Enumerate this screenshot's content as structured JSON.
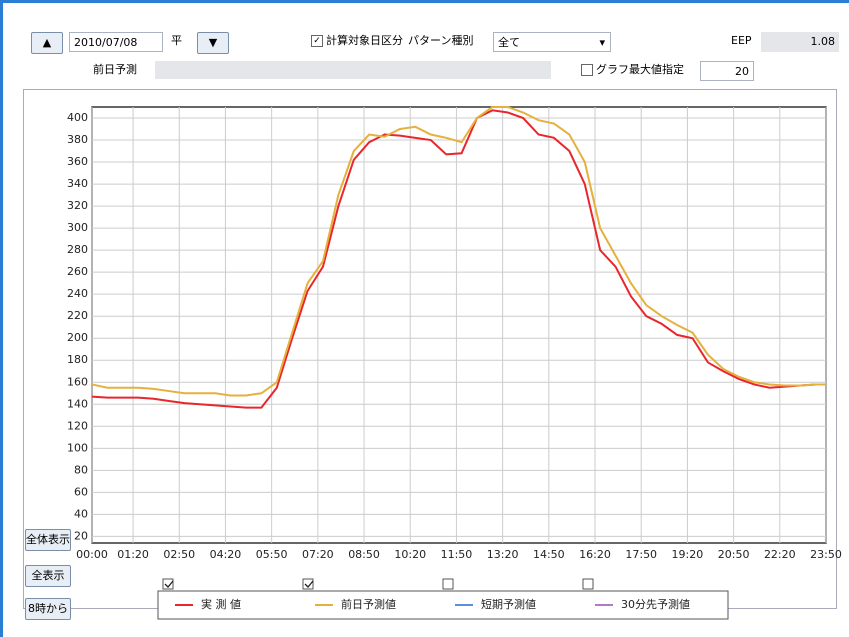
{
  "toolbar": {
    "date": "2010/07/08",
    "day_type": "平",
    "calc_target_label": "計算対象日区分",
    "pattern_label": "パターン種別",
    "pattern_value": "全て",
    "eep_label": "EEP",
    "eep_value": 1.08,
    "prev_label": "前日予測",
    "graph_max_label": "グラフ最大値指定",
    "graph_max_value": 20
  },
  "buttons": [
    "全体表示",
    "全表示",
    "8時から"
  ],
  "chart_data": {
    "type": "line",
    "x": [
      0,
      30,
      60,
      90,
      120,
      150,
      180,
      210,
      240,
      270,
      300,
      330,
      360,
      390,
      420,
      450,
      480,
      510,
      540,
      570,
      600,
      630,
      660,
      690,
      720,
      750,
      780,
      810,
      840,
      870,
      900,
      930,
      960,
      990,
      1020,
      1050,
      1080,
      1110,
      1140,
      1170,
      1200,
      1230,
      1260,
      1290,
      1320,
      1350,
      1380,
      1410,
      1430
    ],
    "series": [
      {
        "name": "実 測 値",
        "color": "#e8262b",
        "visible": true,
        "values": [
          147,
          146,
          146,
          146,
          145,
          143,
          141,
          140,
          139,
          138,
          137,
          137,
          155,
          200,
          243,
          265,
          320,
          362,
          378,
          385,
          384,
          382,
          380,
          367,
          368,
          400,
          407,
          405,
          400,
          385,
          382,
          370,
          340,
          280,
          265,
          238,
          220,
          213,
          203,
          200,
          178,
          170,
          163,
          158,
          155,
          156,
          157,
          158,
          158
        ]
      },
      {
        "name": "前日予測値",
        "color": "#e6b03c",
        "visible": true,
        "values": [
          158,
          155,
          155,
          155,
          154,
          152,
          150,
          150,
          150,
          148,
          148,
          150,
          160,
          205,
          250,
          270,
          330,
          370,
          385,
          383,
          390,
          392,
          385,
          382,
          378,
          400,
          410,
          410,
          405,
          398,
          395,
          385,
          360,
          300,
          275,
          250,
          230,
          220,
          212,
          205,
          185,
          172,
          165,
          160,
          158,
          157,
          157,
          158,
          158
        ]
      },
      {
        "name": "短期予測値",
        "color": "#5b8fd6",
        "visible": false,
        "values": [
          null,
          null,
          null,
          null,
          null,
          null,
          null,
          null,
          null,
          null,
          null,
          null,
          null,
          null,
          null,
          null,
          null,
          null,
          null,
          null,
          null,
          null,
          null,
          null,
          null,
          null,
          null,
          null,
          null,
          null,
          null,
          null,
          null,
          null,
          null,
          null,
          null,
          null,
          null,
          null,
          null,
          null,
          null,
          null,
          null,
          null,
          null,
          null,
          null
        ]
      },
      {
        "name": "30分先予測値",
        "color": "#b07ac8",
        "visible": false,
        "values": [
          null,
          null,
          null,
          null,
          null,
          null,
          null,
          null,
          null,
          null,
          null,
          null,
          null,
          null,
          null,
          null,
          null,
          null,
          null,
          null,
          null,
          null,
          null,
          null,
          null,
          null,
          null,
          null,
          null,
          null,
          null,
          null,
          null,
          null,
          null,
          null,
          null,
          null,
          null,
          null,
          null,
          null,
          null,
          null,
          null,
          null,
          null,
          null,
          null
        ]
      }
    ],
    "xlim": [
      0,
      1430
    ],
    "xticks": [
      {
        "value": 0,
        "label": "00:00"
      },
      {
        "value": 80,
        "label": "01:20"
      },
      {
        "value": 170,
        "label": "02:50"
      },
      {
        "value": 260,
        "label": "04:20"
      },
      {
        "value": 350,
        "label": "05:50"
      },
      {
        "value": 440,
        "label": "07:20"
      },
      {
        "value": 530,
        "label": "08:50"
      },
      {
        "value": 620,
        "label": "10:20"
      },
      {
        "value": 710,
        "label": "11:50"
      },
      {
        "value": 800,
        "label": "13:20"
      },
      {
        "value": 890,
        "label": "14:50"
      },
      {
        "value": 980,
        "label": "16:20"
      },
      {
        "value": 1070,
        "label": "17:50"
      },
      {
        "value": 1160,
        "label": "19:20"
      },
      {
        "value": 1250,
        "label": "20:50"
      },
      {
        "value": 1340,
        "label": "22:20"
      },
      {
        "value": 1430,
        "label": "23:50"
      }
    ],
    "ylim": [
      14,
      410
    ],
    "yticks": [
      20,
      40,
      60,
      80,
      100,
      120,
      140,
      160,
      180,
      200,
      220,
      240,
      260,
      280,
      300,
      320,
      340,
      360,
      380,
      400
    ],
    "grid": true
  }
}
